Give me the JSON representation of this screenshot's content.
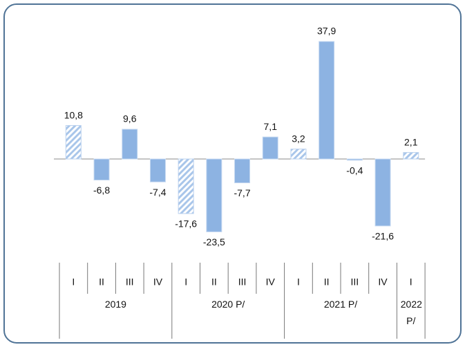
{
  "chart_data": {
    "type": "bar",
    "groups": [
      {
        "name": "2019",
        "categories": [
          "I",
          "II",
          "III",
          "IV"
        ]
      },
      {
        "name": "2020 P/",
        "categories": [
          "I",
          "II",
          "III",
          "IV"
        ]
      },
      {
        "name": "2021 P/",
        "categories": [
          "I",
          "II",
          "III",
          "IV"
        ]
      },
      {
        "name": "2022 P/",
        "categories": [
          "I"
        ]
      }
    ],
    "values": [
      10.8,
      -6.8,
      9.6,
      -7.4,
      -17.6,
      -23.5,
      -7.7,
      7.1,
      3.2,
      37.9,
      -0.4,
      -21.6,
      2.1
    ],
    "value_labels": [
      "10,8",
      "-6,8",
      "9,6",
      "-7,4",
      "-17,6",
      "-23,5",
      "-7,7",
      "7,1",
      "3,2",
      "37,9",
      "-0,4",
      "-21,6",
      "2,1"
    ],
    "hatched": [
      true,
      false,
      false,
      false,
      true,
      false,
      false,
      false,
      true,
      false,
      false,
      false,
      true
    ],
    "color": "#8db3e2"
  }
}
